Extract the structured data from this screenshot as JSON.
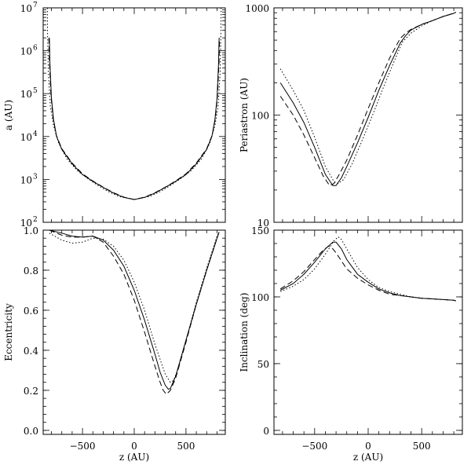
{
  "chart_data": [
    {
      "id": "semimajor",
      "type": "line",
      "xlabel": "",
      "ylabel": "a (AU)",
      "xlim": [
        -880,
        880
      ],
      "ylim": [
        100,
        10000000
      ],
      "yscale": "log",
      "xticks": [
        -500,
        0,
        500
      ],
      "xticklabels": [
        "",
        "",
        ""
      ],
      "yticks": [
        100,
        1000,
        10000,
        100000,
        1000000,
        10000000
      ],
      "yticklabels_base": [
        "10",
        "10",
        "10",
        "10",
        "10",
        "10"
      ],
      "yticklabels_exp": [
        "2",
        "3",
        "4",
        "5",
        "6",
        "7"
      ],
      "series": [
        {
          "style": "solid",
          "x": [
            -820,
            -815,
            -800,
            -780,
            -750,
            -700,
            -600,
            -500,
            -400,
            -300,
            -200,
            -100,
            0,
            100,
            200,
            300,
            400,
            500,
            600,
            700,
            750,
            780,
            800,
            815,
            820
          ],
          "y": [
            2000000,
            500000,
            80000,
            25000,
            10000,
            5000,
            2300,
            1300,
            900,
            650,
            480,
            380,
            340,
            380,
            480,
            650,
            900,
            1300,
            2300,
            5000,
            10000,
            25000,
            80000,
            500000,
            2000000
          ]
        },
        {
          "style": "dashed",
          "x": [
            -825,
            -820,
            -805,
            -785,
            -755,
            -700,
            -600,
            -500,
            -400,
            -300,
            -200,
            -100,
            0,
            100,
            200,
            300,
            400,
            500,
            600,
            700,
            755,
            785,
            805,
            820,
            825
          ],
          "y": [
            2000000,
            600000,
            90000,
            28000,
            11000,
            5200,
            2400,
            1350,
            920,
            660,
            490,
            385,
            340,
            385,
            490,
            660,
            920,
            1350,
            2400,
            5200,
            11000,
            28000,
            90000,
            600000,
            2000000
          ]
        },
        {
          "style": "dotted",
          "x": [
            -840,
            -838,
            -830,
            -810,
            -780,
            -730,
            -650,
            -550,
            -450,
            -350,
            -250,
            -150,
            0,
            150,
            250,
            350,
            450,
            550,
            650,
            730,
            780,
            810,
            830,
            838,
            840
          ],
          "y": [
            10000000,
            3000000,
            300000,
            50000,
            18000,
            7000,
            3000,
            1600,
            1050,
            720,
            520,
            400,
            340,
            400,
            520,
            720,
            1050,
            1600,
            3000,
            7000,
            18000,
            50000,
            300000,
            3000000,
            10000000
          ]
        }
      ]
    },
    {
      "id": "periastron",
      "type": "line",
      "xlabel": "",
      "ylabel": "Periastron (AU)",
      "xlim": [
        -880,
        880
      ],
      "ylim": [
        10,
        1000
      ],
      "yscale": "log",
      "xticks": [
        -500,
        0,
        500
      ],
      "xticklabels": [
        "",
        "",
        ""
      ],
      "yticks": [
        10,
        100,
        1000
      ],
      "yticklabels": [
        "10",
        "100",
        "1000"
      ],
      "series": [
        {
          "style": "solid",
          "x": [
            -820,
            -700,
            -600,
            -500,
            -400,
            -330,
            -300,
            -250,
            -200,
            -100,
            0,
            100,
            200,
            300,
            350,
            400,
            500,
            600,
            700,
            800,
            820
          ],
          "y": [
            200,
            130,
            85,
            50,
            28,
            22,
            22,
            26,
            33,
            55,
            95,
            170,
            290,
            470,
            550,
            620,
            700,
            760,
            830,
            890,
            910
          ]
        },
        {
          "style": "dashed",
          "x": [
            -820,
            -700,
            -600,
            -500,
            -420,
            -360,
            -320,
            -270,
            -200,
            -100,
            0,
            100,
            200,
            300,
            350,
            400,
            500,
            600,
            700,
            800,
            820
          ],
          "y": [
            150,
            100,
            65,
            40,
            27,
            22,
            23,
            28,
            38,
            65,
            115,
            200,
            340,
            520,
            580,
            630,
            700,
            760,
            830,
            890,
            910
          ]
        },
        {
          "style": "dotted",
          "x": [
            -820,
            -700,
            -600,
            -500,
            -400,
            -320,
            -280,
            -230,
            -150,
            -50,
            50,
            150,
            250,
            320,
            400,
            500,
            600,
            700,
            800,
            820
          ],
          "y": [
            270,
            170,
            110,
            62,
            33,
            24,
            23,
            25,
            35,
            60,
            105,
            190,
            330,
            480,
            580,
            680,
            760,
            830,
            890,
            910
          ]
        }
      ]
    },
    {
      "id": "eccentricity",
      "type": "line",
      "xlabel": "z (AU)",
      "ylabel": "Eccentricity",
      "xlim": [
        -880,
        880
      ],
      "ylim": [
        -0.02,
        1.0
      ],
      "yscale": "linear",
      "xticks": [
        -500,
        0,
        500
      ],
      "xticklabels": [
        "−500",
        "0",
        "500"
      ],
      "yticks": [
        0.0,
        0.2,
        0.4,
        0.6,
        0.8,
        1.0
      ],
      "yticklabels": [
        "0.0",
        "0.2",
        "0.4",
        "0.6",
        "0.8",
        "1.0"
      ],
      "series": [
        {
          "style": "solid",
          "x": [
            -820,
            -700,
            -600,
            -500,
            -400,
            -300,
            -200,
            -100,
            0,
            100,
            200,
            250,
            300,
            330,
            350,
            400,
            500,
            600,
            700,
            800,
            820
          ],
          "y": [
            1.0,
            0.985,
            0.97,
            0.965,
            0.97,
            0.95,
            0.9,
            0.82,
            0.7,
            0.55,
            0.38,
            0.29,
            0.225,
            0.205,
            0.21,
            0.27,
            0.45,
            0.63,
            0.8,
            0.96,
            0.99
          ]
        },
        {
          "style": "dashed",
          "x": [
            -820,
            -700,
            -600,
            -500,
            -400,
            -300,
            -200,
            -100,
            0,
            100,
            200,
            250,
            280,
            310,
            350,
            400,
            500,
            600,
            700,
            800,
            820
          ],
          "y": [
            1.0,
            0.975,
            0.965,
            0.965,
            0.97,
            0.94,
            0.87,
            0.78,
            0.65,
            0.49,
            0.32,
            0.24,
            0.2,
            0.18,
            0.2,
            0.26,
            0.44,
            0.63,
            0.8,
            0.96,
            0.99
          ]
        },
        {
          "style": "dotted",
          "x": [
            -820,
            -700,
            -600,
            -500,
            -400,
            -300,
            -200,
            -100,
            0,
            100,
            200,
            300,
            350,
            380,
            420,
            500,
            600,
            700,
            800,
            820
          ],
          "y": [
            0.985,
            0.95,
            0.935,
            0.94,
            0.96,
            0.955,
            0.92,
            0.85,
            0.74,
            0.6,
            0.43,
            0.28,
            0.24,
            0.25,
            0.3,
            0.45,
            0.64,
            0.81,
            0.97,
            0.99
          ]
        }
      ]
    },
    {
      "id": "inclination",
      "type": "line",
      "xlabel": "z (AU)",
      "ylabel": "Inclination (deg)",
      "xlim": [
        -880,
        880
      ],
      "ylim": [
        -3,
        150
      ],
      "yscale": "linear",
      "xticks": [
        -500,
        0,
        500
      ],
      "xticklabels": [
        "−500",
        "0",
        "500"
      ],
      "yticks": [
        0,
        50,
        100,
        150
      ],
      "yticklabels": [
        "0",
        "50",
        "100",
        "150"
      ],
      "series": [
        {
          "style": "solid",
          "x": [
            -820,
            -700,
            -600,
            -500,
            -400,
            -330,
            -300,
            -250,
            -200,
            -100,
            0,
            100,
            200,
            300,
            400,
            500,
            600,
            700,
            800,
            820
          ],
          "y": [
            105,
            110,
            117,
            126,
            136,
            141,
            141,
            136,
            128,
            117,
            111,
            106,
            103,
            101,
            100,
            99,
            98.5,
            98,
            97.5,
            97
          ]
        },
        {
          "style": "dashed",
          "x": [
            -820,
            -700,
            -600,
            -500,
            -420,
            -370,
            -340,
            -300,
            -250,
            -200,
            -100,
            0,
            100,
            200,
            300,
            400,
            500,
            600,
            700,
            800,
            820
          ],
          "y": [
            106,
            112,
            119,
            128,
            135,
            138,
            137,
            133,
            127,
            121,
            114,
            109,
            105,
            102,
            101,
            100,
            99,
            98.5,
            98,
            97.5,
            97
          ]
        },
        {
          "style": "dotted",
          "x": [
            -820,
            -700,
            -600,
            -500,
            -400,
            -320,
            -280,
            -250,
            -200,
            -100,
            0,
            100,
            200,
            300,
            400,
            500,
            600,
            700,
            800,
            820
          ],
          "y": [
            104,
            108,
            113,
            121,
            132,
            142,
            145,
            143,
            136,
            122,
            113,
            107,
            104,
            102,
            100,
            99,
            98.5,
            98,
            97.5,
            97
          ]
        }
      ]
    }
  ]
}
